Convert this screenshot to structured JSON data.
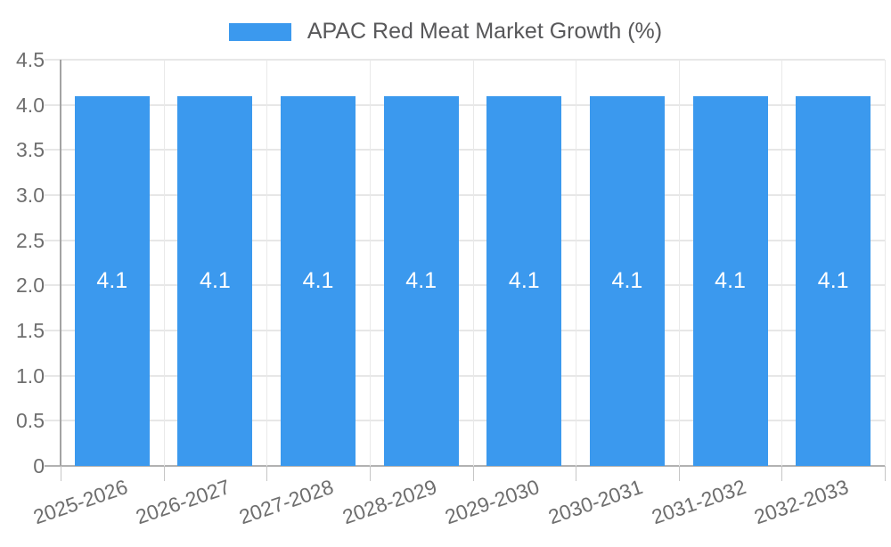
{
  "chart_data": {
    "type": "bar",
    "title": "APAC Red Meat Market Growth (%)",
    "categories": [
      "2025-2026",
      "2026-2027",
      "2027-2028",
      "2028-2029",
      "2029-2030",
      "2030-2031",
      "2031-2032",
      "2032-2033"
    ],
    "values": [
      4.1,
      4.1,
      4.1,
      4.1,
      4.1,
      4.1,
      4.1,
      4.1
    ],
    "bar_value_labels": [
      "4.1",
      "4.1",
      "4.1",
      "4.1",
      "4.1",
      "4.1",
      "4.1",
      "4.1"
    ],
    "xlabel": "",
    "ylabel": "",
    "ylim": [
      0,
      4.5
    ],
    "ytick_values": [
      0,
      0.5,
      1.0,
      1.5,
      2.0,
      2.5,
      3.0,
      3.5,
      4.0,
      4.5
    ],
    "ytick_labels": [
      "0",
      "0.5",
      "1.0",
      "1.5",
      "2.0",
      "2.5",
      "3.0",
      "3.5",
      "4.0",
      "4.5"
    ],
    "grid": true,
    "legend": {
      "position": "top",
      "label": "APAC Red Meat Market Growth (%)"
    },
    "colors": {
      "bar": "#3b99ee",
      "value_label": "#ffffff"
    }
  }
}
